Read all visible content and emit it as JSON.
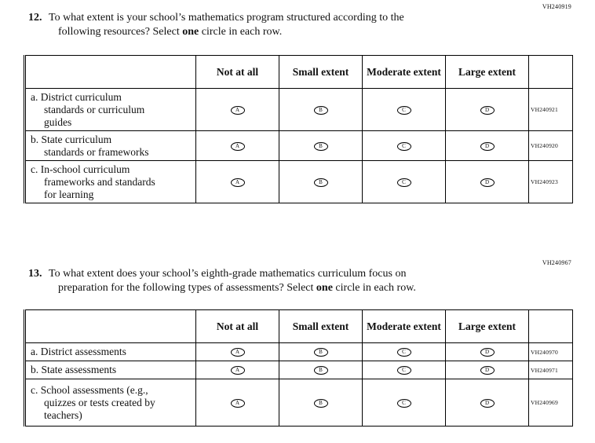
{
  "circle_letters": [
    "A",
    "B",
    "C",
    "D"
  ],
  "questions": [
    {
      "code": "VH240919",
      "number": "12.",
      "text_part1": "To what extent is your school’s mathematics program structured according to the\nfollowing resources? Select ",
      "text_bold": "one",
      "text_part2": " circle in each row.",
      "columns": [
        "Not at all",
        "Small extent",
        "Moderate extent",
        "Large extent"
      ],
      "rows": [
        {
          "label": "a. District curriculum\nstandards or curriculum\nguides",
          "code": "VH240921"
        },
        {
          "label": "b. State curriculum\nstandards or frameworks",
          "code": "VH240920"
        },
        {
          "label": "c. In-school curriculum\nframeworks and standards\nfor learning",
          "code": "VH240923"
        }
      ]
    },
    {
      "code": "VH240967",
      "number": "13.",
      "text_part1": "To what extent does your school’s eighth-grade mathematics curriculum focus on\npreparation for the following types of assessments? Select ",
      "text_bold": "one",
      "text_part2": " circle in each row.",
      "columns": [
        "Not at all",
        "Small extent",
        "Moderate extent",
        "Large extent"
      ],
      "rows": [
        {
          "label": "a. District assessments",
          "code": "VH240970"
        },
        {
          "label": "b. State assessments",
          "code": "VH240971"
        },
        {
          "label": "c. School assessments (e.g.,\nquizzes or tests created by\nteachers)",
          "code": "VH240969"
        }
      ]
    }
  ]
}
